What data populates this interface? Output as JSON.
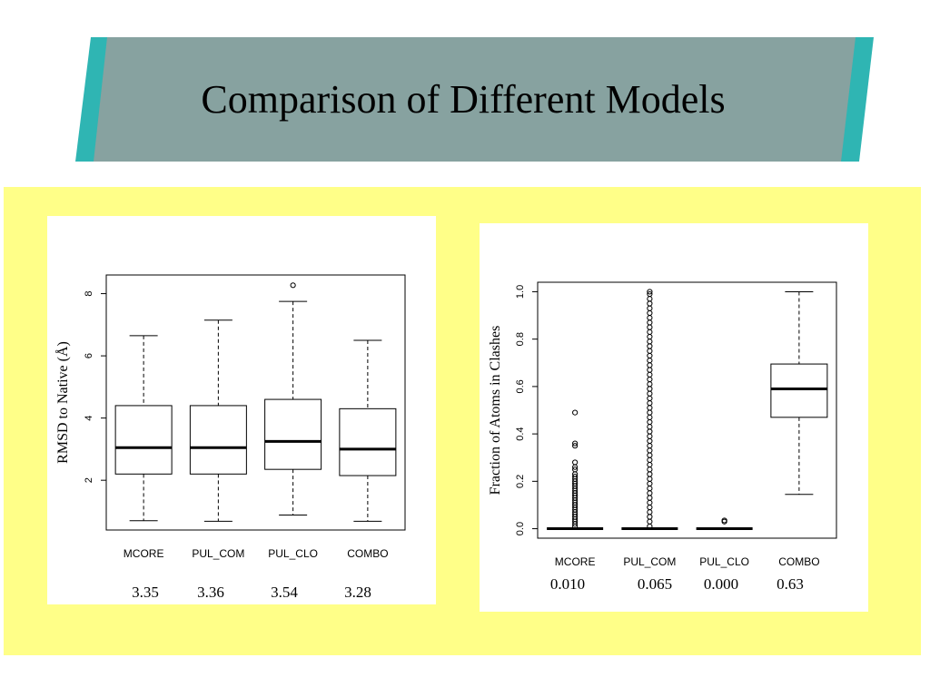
{
  "page": {
    "title": "Comparison of Different Models",
    "colors": {
      "banner": "#87a2a0",
      "banner_edge": "#2fb5b3",
      "panel": "#ffff88"
    }
  },
  "chart_data": [
    {
      "type": "boxplot",
      "ylabel": "RMSD to Native (Å)",
      "xlabel": "",
      "ylim": [
        0.4,
        8.6
      ],
      "yticks": [
        2,
        4,
        6,
        8
      ],
      "categories": [
        "MCORE",
        "PUL_COM",
        "PUL_CLO",
        "COMBO"
      ],
      "boxes": [
        {
          "whisker_low": 0.7,
          "q1": 2.2,
          "median": 3.05,
          "q3": 4.4,
          "whisker_high": 6.65,
          "outliers": []
        },
        {
          "whisker_low": 0.68,
          "q1": 2.2,
          "median": 3.05,
          "q3": 4.4,
          "whisker_high": 7.15,
          "outliers": []
        },
        {
          "whisker_low": 0.88,
          "q1": 2.35,
          "median": 3.25,
          "q3": 4.6,
          "whisker_high": 7.75,
          "outliers": [
            8.27
          ]
        },
        {
          "whisker_low": 0.68,
          "q1": 2.15,
          "median": 3.0,
          "q3": 4.3,
          "whisker_high": 6.5,
          "outliers": []
        }
      ],
      "means": [
        "3.35",
        "3.36",
        "3.54",
        "3.28"
      ],
      "grid": false
    },
    {
      "type": "boxplot",
      "ylabel": "Fraction of Atoms in Clashes",
      "xlabel": "",
      "ylim": [
        -0.04,
        1.04
      ],
      "yticks": [
        0.0,
        0.2,
        0.4,
        0.6,
        0.8,
        1.0
      ],
      "ytick_labels": [
        "0.0",
        "0.2",
        "0.4",
        "0.6",
        "0.8",
        "1.0"
      ],
      "categories": [
        "MCORE",
        "PUL_COM",
        "PUL_CLO",
        "COMBO"
      ],
      "boxes": [
        {
          "whisker_low": 0.0,
          "q1": 0.0,
          "median": 0.0,
          "q3": 0.0,
          "whisker_high": 0.0,
          "outliers": [
            0.01,
            0.02,
            0.03,
            0.04,
            0.05,
            0.06,
            0.07,
            0.08,
            0.09,
            0.1,
            0.11,
            0.12,
            0.13,
            0.14,
            0.15,
            0.16,
            0.17,
            0.18,
            0.19,
            0.2,
            0.21,
            0.22,
            0.23,
            0.25,
            0.26,
            0.28,
            0.35,
            0.36,
            0.49
          ]
        },
        {
          "whisker_low": 0.0,
          "q1": 0.0,
          "median": 0.0,
          "q3": 0.0,
          "whisker_high": 0.0,
          "outliers": [
            0.01,
            0.03,
            0.05,
            0.07,
            0.09,
            0.11,
            0.13,
            0.15,
            0.17,
            0.19,
            0.21,
            0.23,
            0.25,
            0.27,
            0.29,
            0.31,
            0.33,
            0.35,
            0.37,
            0.39,
            0.41,
            0.43,
            0.45,
            0.47,
            0.49,
            0.51,
            0.53,
            0.55,
            0.57,
            0.59,
            0.61,
            0.63,
            0.65,
            0.67,
            0.69,
            0.71,
            0.73,
            0.75,
            0.77,
            0.79,
            0.81,
            0.83,
            0.85,
            0.87,
            0.89,
            0.91,
            0.93,
            0.95,
            0.97,
            0.99,
            1.0
          ]
        },
        {
          "whisker_low": 0.0,
          "q1": 0.0,
          "median": 0.0,
          "q3": 0.0,
          "whisker_high": 0.0,
          "outliers": [
            0.03,
            0.035
          ]
        },
        {
          "whisker_low": 0.145,
          "q1": 0.47,
          "median": 0.59,
          "q3": 0.695,
          "whisker_high": 1.0,
          "outliers": []
        }
      ],
      "means": [
        "0.010",
        "0.065",
        "0.000",
        "0.63"
      ],
      "grid": false
    }
  ]
}
